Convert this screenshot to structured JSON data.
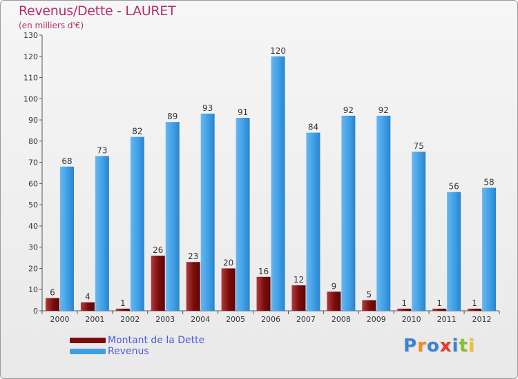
{
  "header": {
    "title": "Revenus/Dette - LAURET",
    "subtitle": "(en milliers d'€)"
  },
  "legend": {
    "items": [
      {
        "label": "Montant de la Dette",
        "color": "#7a0c0c"
      },
      {
        "label": "Revenus",
        "color": "#3f9fe6"
      }
    ]
  },
  "logo": {
    "text": "Proxiti",
    "letters": [
      {
        "ch": "P",
        "color": "#3b82d6"
      },
      {
        "ch": "r",
        "color": "#f08a1c"
      },
      {
        "ch": "o",
        "color": "#3b82d6"
      },
      {
        "ch": "x",
        "color": "#e53a2a"
      },
      {
        "ch": "i",
        "color": "#3b82d6"
      },
      {
        "ch": "t",
        "color": "#8cbd2a"
      },
      {
        "ch": "i",
        "color": "#f0c21c"
      }
    ]
  },
  "chart_data": {
    "type": "bar",
    "title": "Revenus/Dette - LAURET",
    "subtitle": "(en milliers d'€)",
    "categories": [
      "2000",
      "2001",
      "2002",
      "2003",
      "2004",
      "2005",
      "2006",
      "2007",
      "2008",
      "2009",
      "2010",
      "2011",
      "2012"
    ],
    "series": [
      {
        "name": "Montant de la Dette",
        "color": "#7a0c0c",
        "values": [
          6,
          4,
          1,
          26,
          23,
          20,
          16,
          12,
          9,
          5,
          1,
          1,
          1
        ]
      },
      {
        "name": "Revenus",
        "color": "#3f9fe6",
        "values": [
          68,
          73,
          82,
          89,
          93,
          91,
          120,
          84,
          92,
          92,
          75,
          56,
          58
        ]
      }
    ],
    "yticks": [
      0,
      10,
      20,
      30,
      40,
      50,
      60,
      70,
      80,
      90,
      100,
      110,
      120,
      130
    ],
    "ylim": [
      0,
      130
    ],
    "grid": false,
    "legend_position": "bottom-left"
  }
}
